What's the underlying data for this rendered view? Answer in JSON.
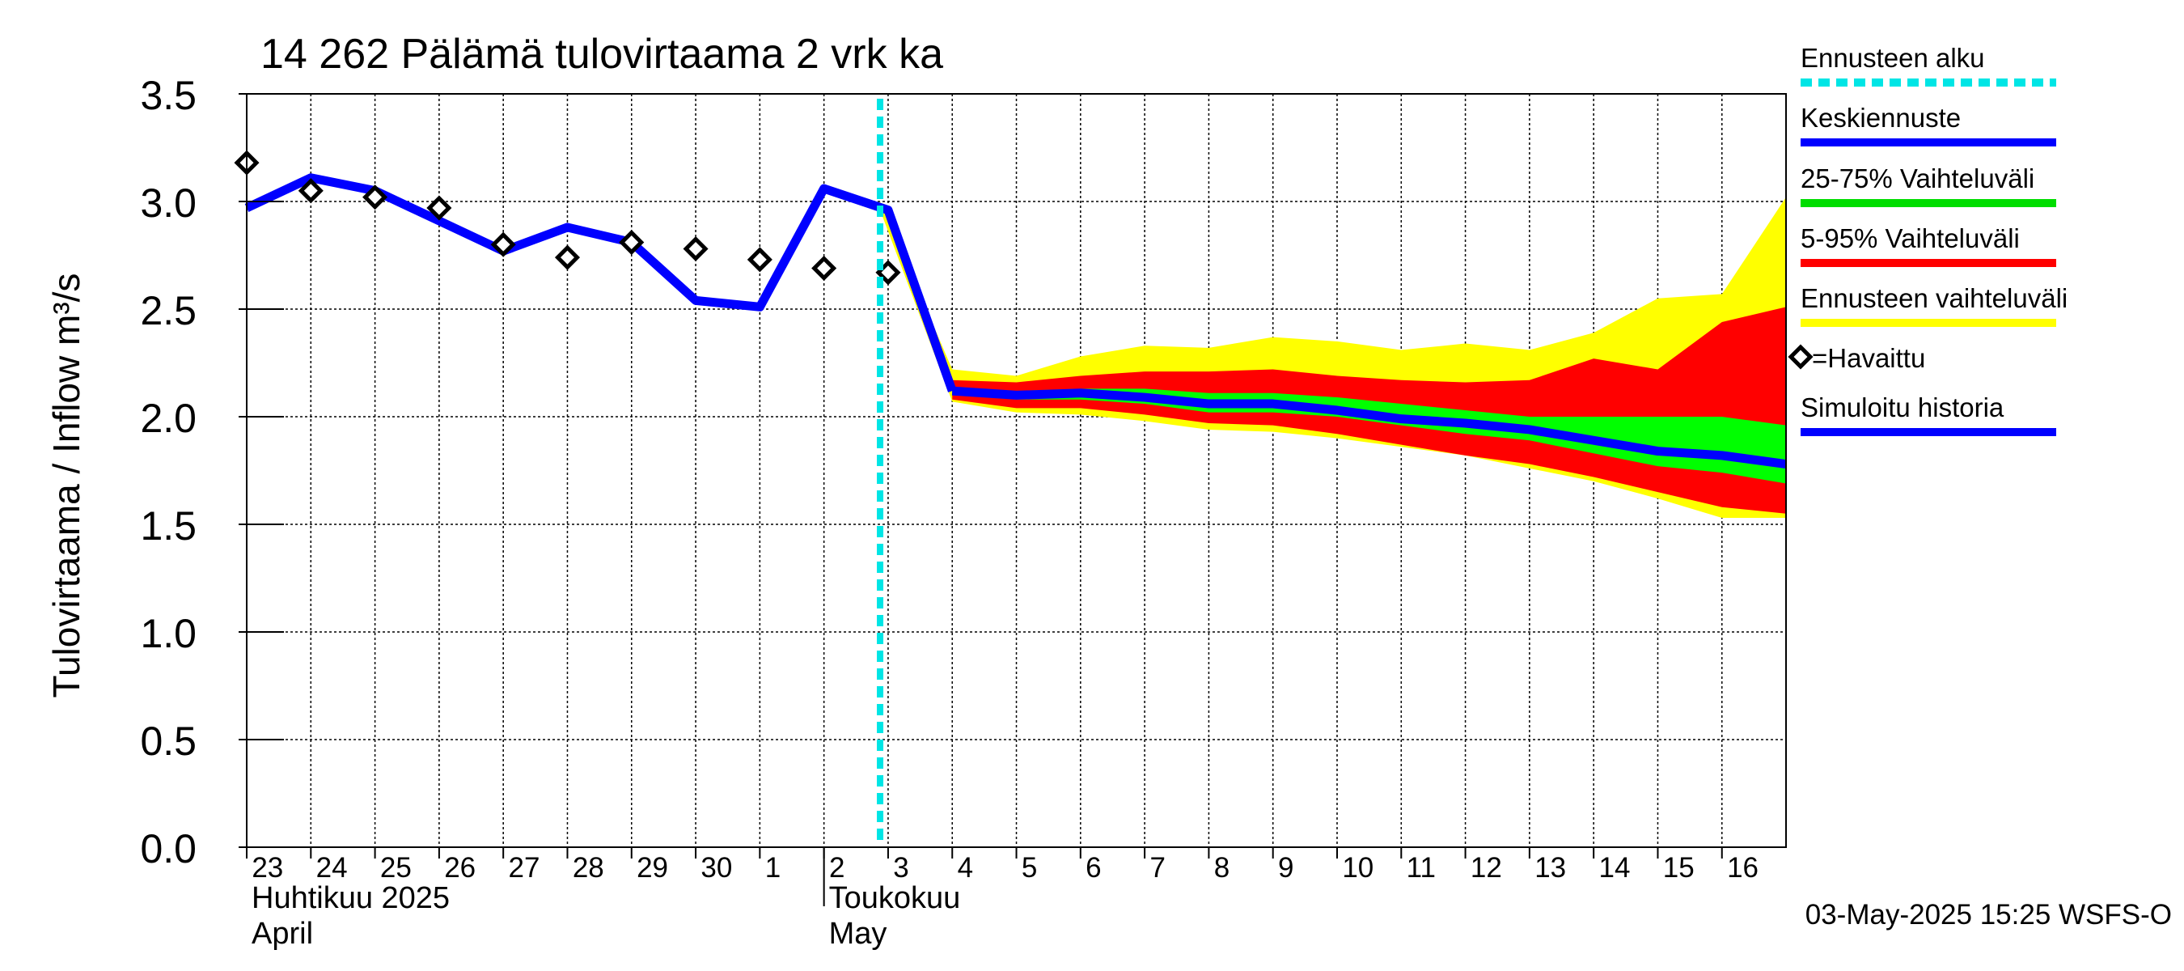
{
  "chart_data": {
    "type": "area",
    "title": "14 262 Pälämä tulovirtaama 2 vrk ka",
    "ylabel": "Tulovirtaama / Inflow    m³/s",
    "ylim": [
      0.0,
      3.5
    ],
    "yticks": [
      "0.0",
      "0.5",
      "1.0",
      "1.5",
      "2.0",
      "2.5",
      "3.0",
      "3.5"
    ],
    "xlim": [
      "2025-04-23",
      "2025-05-16T23:59"
    ],
    "xtick_days": [
      "23",
      "24",
      "25",
      "26",
      "27",
      "28",
      "29",
      "30",
      "1",
      "2",
      "3",
      "4",
      "5",
      "6",
      "7",
      "8",
      "9",
      "10",
      "11",
      "12",
      "13",
      "14",
      "15",
      "16"
    ],
    "month_labels": [
      {
        "fi": "Huhtikuu  2025",
        "en": "April",
        "start": "2025-04-23"
      },
      {
        "fi": "Toukokuu",
        "en": "May",
        "start": "2025-05-02"
      }
    ],
    "forecast_start": "2025-05-02T21:00",
    "grid": true,
    "legend_position": "right",
    "series": [
      {
        "name": "Ennusteen vaihteluväli",
        "kind": "band",
        "color": "#ffff00",
        "x": [
          "2025-05-02T21:00",
          "2025-05-04",
          "2025-05-05",
          "2025-05-06",
          "2025-05-07",
          "2025-05-08",
          "2025-05-09",
          "2025-05-10",
          "2025-05-11",
          "2025-05-12",
          "2025-05-13",
          "2025-05-14",
          "2025-05-15",
          "2025-05-16",
          "2025-05-16T23:59"
        ],
        "low": [
          2.96,
          2.07,
          2.02,
          2.01,
          1.98,
          1.94,
          1.93,
          1.9,
          1.86,
          1.82,
          1.76,
          1.7,
          1.62,
          1.53,
          1.53
        ],
        "high": [
          3.0,
          2.22,
          2.19,
          2.28,
          2.33,
          2.32,
          2.37,
          2.35,
          2.31,
          2.34,
          2.31,
          2.39,
          2.55,
          2.57,
          3.02
        ]
      },
      {
        "name": "5-95% Vaihteluväli",
        "kind": "band",
        "color": "#ff0000",
        "x": [
          "2025-05-04",
          "2025-05-05",
          "2025-05-06",
          "2025-05-07",
          "2025-05-08",
          "2025-05-09",
          "2025-05-10",
          "2025-05-11",
          "2025-05-12",
          "2025-05-13",
          "2025-05-14",
          "2025-05-15",
          "2025-05-16",
          "2025-05-16T23:59"
        ],
        "low": [
          2.08,
          2.04,
          2.04,
          2.01,
          1.97,
          1.96,
          1.92,
          1.87,
          1.82,
          1.78,
          1.72,
          1.65,
          1.58,
          1.55
        ],
        "high": [
          2.17,
          2.16,
          2.19,
          2.21,
          2.21,
          2.22,
          2.19,
          2.17,
          2.16,
          2.17,
          2.27,
          2.22,
          2.44,
          2.51
        ]
      },
      {
        "name": "25-75% Vaihteluväli",
        "kind": "band",
        "color": "#00ff00",
        "x": [
          "2025-05-04",
          "2025-05-05",
          "2025-05-06",
          "2025-05-07",
          "2025-05-08",
          "2025-05-09",
          "2025-05-10",
          "2025-05-11",
          "2025-05-12",
          "2025-05-13",
          "2025-05-14",
          "2025-05-15",
          "2025-05-16",
          "2025-05-16T23:59"
        ],
        "low": [
          2.1,
          2.08,
          2.08,
          2.06,
          2.02,
          2.02,
          2.0,
          1.96,
          1.92,
          1.89,
          1.83,
          1.77,
          1.74,
          1.69
        ],
        "high": [
          2.14,
          2.12,
          2.13,
          2.13,
          2.11,
          2.11,
          2.09,
          2.06,
          2.03,
          2.0,
          2.0,
          2.0,
          2.0,
          1.96
        ]
      },
      {
        "name": "Keskiennuste",
        "kind": "line",
        "color": "#0000ff",
        "x": [
          "2025-05-04",
          "2025-05-05",
          "2025-05-06",
          "2025-05-07",
          "2025-05-08",
          "2025-05-09",
          "2025-05-10",
          "2025-05-11",
          "2025-05-12",
          "2025-05-13",
          "2025-05-14",
          "2025-05-15",
          "2025-05-16",
          "2025-05-16T23:59"
        ],
        "y": [
          2.12,
          2.1,
          2.11,
          2.09,
          2.06,
          2.06,
          2.03,
          1.99,
          1.97,
          1.94,
          1.89,
          1.84,
          1.82,
          1.78
        ]
      },
      {
        "name": "Simuloitu historia",
        "kind": "line",
        "color": "#0000ff",
        "x": [
          "2025-04-23",
          "2025-04-24",
          "2025-04-25",
          "2025-04-26",
          "2025-04-27",
          "2025-04-28",
          "2025-04-29",
          "2025-04-30",
          "2025-05-01",
          "2025-05-02",
          "2025-05-03",
          "2025-05-04"
        ],
        "y": [
          2.97,
          3.11,
          3.05,
          2.91,
          2.77,
          2.88,
          2.81,
          2.54,
          2.51,
          3.06,
          2.96,
          2.12
        ]
      },
      {
        "name": "=Havaittu",
        "kind": "points",
        "x": [
          "2025-04-23",
          "2025-04-24",
          "2025-04-25",
          "2025-04-26",
          "2025-04-27",
          "2025-04-28",
          "2025-04-29",
          "2025-04-30",
          "2025-05-01",
          "2025-05-02",
          "2025-05-03"
        ],
        "y": [
          3.18,
          3.05,
          3.02,
          2.97,
          2.8,
          2.74,
          2.81,
          2.78,
          2.73,
          2.69,
          2.67
        ]
      }
    ],
    "legend": [
      {
        "label": "Ennusteen alku",
        "color": "#00e5e5",
        "style": "dashed"
      },
      {
        "label": "Keskiennuste",
        "color": "#0000ff",
        "style": "solid"
      },
      {
        "label": "25-75% Vaihteluväli",
        "color": "#00dd00",
        "style": "solid"
      },
      {
        "label": "5-95% Vaihteluväli",
        "color": "#ff0000",
        "style": "solid"
      },
      {
        "label": "Ennusteen vaihteluväli",
        "color": "#ffff00",
        "style": "solid"
      },
      {
        "label": "=Havaittu",
        "color": "#000000",
        "style": "marker"
      },
      {
        "label": "Simuloitu historia",
        "color": "#0000ff",
        "style": "solid"
      }
    ],
    "timestamp": "03-May-2025 15:25 WSFS-O"
  }
}
